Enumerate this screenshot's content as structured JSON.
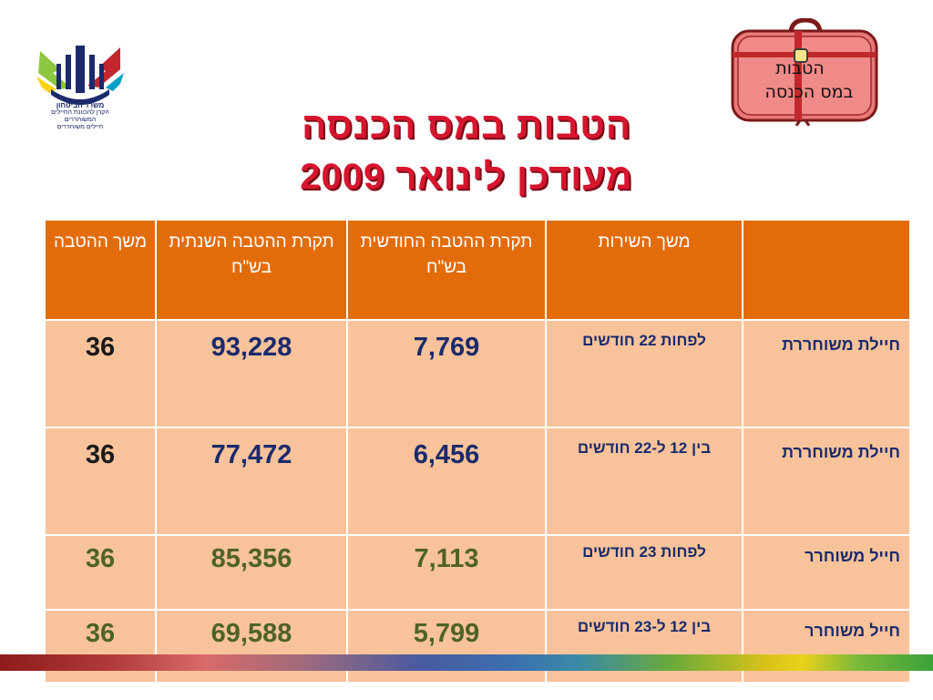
{
  "header": {
    "logo_caption_line1": "משרד הביטחון",
    "logo_caption_line2": "הקרן להכוונת החיילים המשוחררים",
    "logo_caption_line3": "חיילים משוחררים",
    "suitcase_text_line1": "הטבות",
    "suitcase_text_line2": "במס הכנסה",
    "title_line1": "הטבות במס הכנסה",
    "title_line2": "מעודכן לינואר 2009"
  },
  "table": {
    "headers": [
      "",
      "משך השירות",
      "תקרת ההטבה החודשית בש\"ח",
      "תקרת ההטבה השנתית בש\"ח",
      "משך ההטבה"
    ],
    "rows": [
      {
        "label": "חיילת משוחררת",
        "service": "לפחות 22 חודשים",
        "monthly": "7,769",
        "annual": "93,228",
        "duration": "36"
      },
      {
        "label": "חיילת משוחררת",
        "service": "בין 12 ל-22 חודשים",
        "monthly": "6,456",
        "annual": "77,472",
        "duration": "36"
      },
      {
        "label": "חייל משוחרר",
        "service": "לפחות 23 חודשים",
        "monthly": "7,113",
        "annual": "85,356",
        "duration": "36"
      },
      {
        "label": "חייל משוחרר",
        "service": "בין 12 ל-23 חודשים",
        "monthly": "5,799",
        "annual": "69,588",
        "duration": "36"
      }
    ]
  },
  "colors": {
    "header_bg": "#e36c0a",
    "row_bg": "#f8c39b",
    "title_red": "#d7152e",
    "text_blue": "#1b2a6b",
    "text_green": "#4f6228"
  },
  "icons": {
    "logo": "ministry-of-defense-logo",
    "suitcase": "suitcase-icon"
  }
}
